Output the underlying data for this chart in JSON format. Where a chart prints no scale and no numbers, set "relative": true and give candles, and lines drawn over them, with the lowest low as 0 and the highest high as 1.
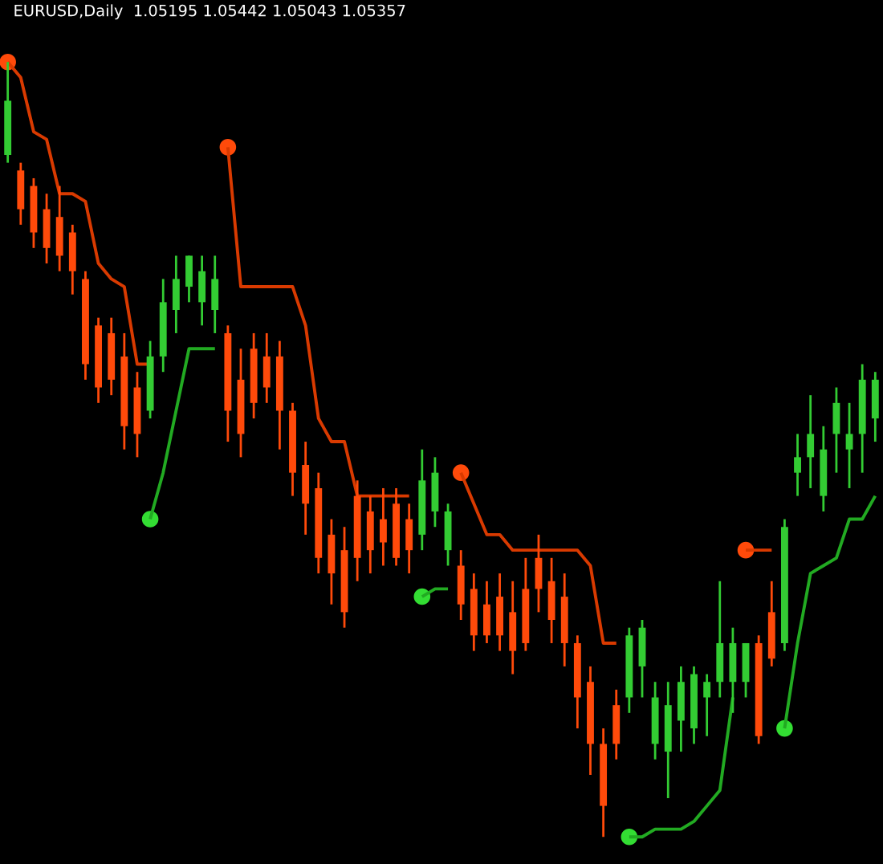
{
  "chart_data": {
    "type": "candlestick",
    "title": "EURUSD,Daily  1.05195 1.05442 1.05043 1.05357",
    "relative": true,
    "tick_labels": false,
    "grid": false,
    "legend": false,
    "categories": [
      null,
      null,
      null,
      null,
      null,
      null,
      null,
      null,
      null,
      null,
      null,
      null,
      null,
      null,
      null,
      null,
      null,
      null,
      null,
      null,
      null,
      null,
      null,
      null,
      null,
      null,
      null,
      null,
      null,
      null,
      null,
      null,
      null,
      null,
      null,
      null,
      null,
      null,
      null,
      null,
      null,
      null,
      null,
      null,
      null,
      null,
      null,
      null,
      null,
      null,
      null,
      null,
      null,
      null,
      null,
      null,
      null,
      null,
      null,
      null,
      null,
      null,
      null,
      null,
      null,
      null,
      null,
      null
    ],
    "ohlc": [
      [
        0.88,
        1.0,
        0.87,
        0.95
      ],
      [
        0.86,
        0.87,
        0.79,
        0.81
      ],
      [
        0.84,
        0.85,
        0.76,
        0.78
      ],
      [
        0.81,
        0.83,
        0.74,
        0.76
      ],
      [
        0.8,
        0.84,
        0.73,
        0.75
      ],
      [
        0.78,
        0.79,
        0.7,
        0.73
      ],
      [
        0.72,
        0.73,
        0.59,
        0.61
      ],
      [
        0.66,
        0.67,
        0.56,
        0.58
      ],
      [
        0.65,
        0.67,
        0.57,
        0.59
      ],
      [
        0.62,
        0.65,
        0.5,
        0.53
      ],
      [
        0.58,
        0.6,
        0.49,
        0.52
      ],
      [
        0.55,
        0.64,
        0.54,
        0.62
      ],
      [
        0.62,
        0.72,
        0.6,
        0.69
      ],
      [
        0.68,
        0.75,
        0.65,
        0.72
      ],
      [
        0.71,
        0.75,
        0.69,
        0.75
      ],
      [
        0.69,
        0.75,
        0.66,
        0.73
      ],
      [
        0.68,
        0.75,
        0.65,
        0.72
      ],
      [
        0.65,
        0.66,
        0.51,
        0.55
      ],
      [
        0.59,
        0.63,
        0.49,
        0.52
      ],
      [
        0.63,
        0.65,
        0.54,
        0.56
      ],
      [
        0.62,
        0.65,
        0.56,
        0.58
      ],
      [
        0.62,
        0.64,
        0.5,
        0.55
      ],
      [
        0.55,
        0.56,
        0.44,
        0.47
      ],
      [
        0.48,
        0.51,
        0.39,
        0.43
      ],
      [
        0.45,
        0.47,
        0.34,
        0.36
      ],
      [
        0.39,
        0.41,
        0.3,
        0.34
      ],
      [
        0.37,
        0.4,
        0.27,
        0.29
      ],
      [
        0.44,
        0.46,
        0.33,
        0.36
      ],
      [
        0.42,
        0.44,
        0.34,
        0.37
      ],
      [
        0.41,
        0.45,
        0.35,
        0.38
      ],
      [
        0.43,
        0.45,
        0.35,
        0.36
      ],
      [
        0.41,
        0.43,
        0.34,
        0.37
      ],
      [
        0.39,
        0.5,
        0.37,
        0.46
      ],
      [
        0.42,
        0.49,
        0.4,
        0.47
      ],
      [
        0.37,
        0.43,
        0.35,
        0.42
      ],
      [
        0.35,
        0.37,
        0.28,
        0.3
      ],
      [
        0.32,
        0.34,
        0.24,
        0.26
      ],
      [
        0.3,
        0.33,
        0.25,
        0.26
      ],
      [
        0.31,
        0.34,
        0.24,
        0.26
      ],
      [
        0.29,
        0.33,
        0.21,
        0.24
      ],
      [
        0.32,
        0.36,
        0.24,
        0.25
      ],
      [
        0.36,
        0.39,
        0.29,
        0.32
      ],
      [
        0.33,
        0.36,
        0.25,
        0.28
      ],
      [
        0.31,
        0.34,
        0.22,
        0.25
      ],
      [
        0.25,
        0.26,
        0.14,
        0.18
      ],
      [
        0.2,
        0.22,
        0.08,
        0.12
      ],
      [
        0.12,
        0.14,
        0.0,
        0.04
      ],
      [
        0.17,
        0.19,
        0.1,
        0.12
      ],
      [
        0.18,
        0.27,
        0.16,
        0.26
      ],
      [
        0.22,
        0.28,
        0.18,
        0.27
      ],
      [
        0.12,
        0.2,
        0.1,
        0.18
      ],
      [
        0.11,
        0.2,
        0.05,
        0.17
      ],
      [
        0.15,
        0.22,
        0.11,
        0.2
      ],
      [
        0.14,
        0.22,
        0.12,
        0.21
      ],
      [
        0.18,
        0.21,
        0.13,
        0.2
      ],
      [
        0.2,
        0.33,
        0.18,
        0.25
      ],
      [
        0.2,
        0.27,
        0.16,
        0.25
      ],
      [
        0.2,
        0.25,
        0.18,
        0.25
      ],
      [
        0.25,
        0.26,
        0.12,
        0.13
      ],
      [
        0.29,
        0.33,
        0.22,
        0.23
      ],
      [
        0.25,
        0.41,
        0.24,
        0.4
      ],
      [
        0.47,
        0.52,
        0.44,
        0.49
      ],
      [
        0.49,
        0.57,
        0.45,
        0.52
      ],
      [
        0.44,
        0.53,
        0.42,
        0.5
      ],
      [
        0.52,
        0.58,
        0.47,
        0.56
      ],
      [
        0.5,
        0.56,
        0.45,
        0.52
      ],
      [
        0.52,
        0.61,
        0.47,
        0.59
      ],
      [
        0.54,
        0.6,
        0.51,
        0.59
      ]
    ],
    "colors": [
      "#33cc33",
      "#ff4a0a",
      "#ff4a0a",
      "#ff4a0a",
      "#ff4a0a",
      "#ff4a0a",
      "#ff4a0a",
      "#ff4a0a",
      "#ff4a0a",
      "#ff4a0a",
      "#ff4a0a",
      "#33cc33",
      "#33cc33",
      "#33cc33",
      "#33cc33",
      "#33cc33",
      "#33cc33",
      "#ff4a0a",
      "#ff4a0a",
      "#ff4a0a",
      "#ff4a0a",
      "#ff4a0a",
      "#ff4a0a",
      "#ff4a0a",
      "#ff4a0a",
      "#ff4a0a",
      "#ff4a0a",
      "#ff4a0a",
      "#ff4a0a",
      "#ff4a0a",
      "#ff4a0a",
      "#ff4a0a",
      "#33cc33",
      "#33cc33",
      "#33cc33",
      "#ff4a0a",
      "#ff4a0a",
      "#ff4a0a",
      "#ff4a0a",
      "#ff4a0a",
      "#ff4a0a",
      "#ff4a0a",
      "#ff4a0a",
      "#ff4a0a",
      "#ff4a0a",
      "#ff4a0a",
      "#ff4a0a",
      "#ff4a0a",
      "#33cc33",
      "#33cc33",
      "#33cc33",
      "#33cc33",
      "#33cc33",
      "#33cc33",
      "#33cc33",
      "#33cc33",
      "#33cc33",
      "#33cc33",
      "#ff4a0a",
      "#ff4a0a",
      "#33cc33",
      "#33cc33",
      "#33cc33",
      "#33cc33",
      "#33cc33",
      "#33cc33",
      "#33cc33",
      "#33cc33"
    ],
    "series": [
      {
        "type": "line",
        "color": "#d93a00",
        "values": [
          1.0,
          0.98,
          0.91,
          0.9,
          0.83,
          0.83,
          0.82,
          0.74,
          0.72,
          0.71,
          0.61,
          0.61,
          null,
          null,
          null,
          null,
          null,
          0.89,
          0.71,
          0.71,
          0.71,
          0.71,
          0.71,
          0.66,
          0.54,
          0.51,
          0.51,
          0.44,
          0.44,
          0.44,
          0.44,
          0.44,
          null,
          null,
          null,
          0.47,
          0.43,
          0.39,
          0.39,
          0.37,
          0.37,
          0.37,
          0.37,
          0.37,
          0.37,
          0.35,
          0.25,
          0.25,
          null,
          null,
          null,
          null,
          null,
          null,
          null,
          null,
          null,
          null,
          null,
          null,
          null,
          null,
          null,
          null,
          null,
          null,
          null,
          null
        ]
      },
      {
        "type": "line",
        "color": "#d93a00",
        "values": [
          null,
          null,
          null,
          null,
          null,
          null,
          null,
          null,
          null,
          null,
          null,
          null,
          null,
          null,
          null,
          null,
          null,
          null,
          null,
          null,
          null,
          null,
          null,
          null,
          null,
          null,
          null,
          null,
          null,
          null,
          null,
          null,
          null,
          null,
          null,
          null,
          null,
          null,
          null,
          null,
          null,
          null,
          null,
          null,
          null,
          null,
          null,
          null,
          null,
          null,
          null,
          null,
          null,
          null,
          null,
          null,
          null,
          0.37,
          0.37,
          0.37,
          null,
          null,
          null,
          null,
          null,
          null,
          null,
          null
        ]
      },
      {
        "type": "line",
        "color": "#22aa22",
        "values": [
          null,
          null,
          null,
          null,
          null,
          null,
          null,
          null,
          null,
          null,
          null,
          0.41,
          0.47,
          0.55,
          0.63,
          0.63,
          0.63,
          null,
          null,
          null,
          null,
          null,
          null,
          null,
          null,
          null,
          null,
          null,
          null,
          null,
          null,
          null,
          0.31,
          0.32,
          0.32,
          null,
          null,
          null,
          null,
          null,
          null,
          null,
          null,
          null,
          null,
          null,
          null,
          null,
          0.0,
          0.0,
          0.01,
          0.01,
          0.01,
          0.02,
          0.04,
          0.06,
          0.18,
          null,
          null,
          null,
          0.14,
          0.25,
          0.34,
          0.35,
          0.36,
          0.41,
          0.41,
          0.44
        ]
      },
      {
        "type": "scatter",
        "marker": "circle",
        "color": "#ff4a0a",
        "values": [
          1.0,
          null,
          null,
          null,
          null,
          null,
          null,
          null,
          null,
          null,
          null,
          null,
          null,
          null,
          null,
          null,
          null,
          0.89,
          null,
          null,
          null,
          null,
          null,
          null,
          null,
          null,
          null,
          null,
          null,
          null,
          null,
          null,
          null,
          null,
          null,
          0.47,
          null,
          null,
          null,
          null,
          null,
          null,
          null,
          null,
          null,
          null,
          null,
          null,
          null,
          null,
          null,
          null,
          null,
          null,
          null,
          null,
          null,
          0.37,
          null,
          null,
          null,
          null,
          null,
          null,
          null,
          null,
          null,
          null
        ]
      },
      {
        "type": "scatter",
        "marker": "circle",
        "color": "#33dd33",
        "values": [
          null,
          null,
          null,
          null,
          null,
          null,
          null,
          null,
          null,
          null,
          null,
          0.41,
          null,
          null,
          null,
          null,
          null,
          null,
          null,
          null,
          null,
          null,
          null,
          null,
          null,
          null,
          null,
          null,
          null,
          null,
          null,
          null,
          0.31,
          null,
          null,
          null,
          null,
          null,
          null,
          null,
          null,
          null,
          null,
          null,
          null,
          null,
          null,
          null,
          0.0,
          null,
          null,
          null,
          null,
          null,
          null,
          null,
          null,
          null,
          null,
          null,
          0.14,
          null,
          null,
          null,
          null,
          null,
          null,
          null
        ]
      }
    ]
  }
}
